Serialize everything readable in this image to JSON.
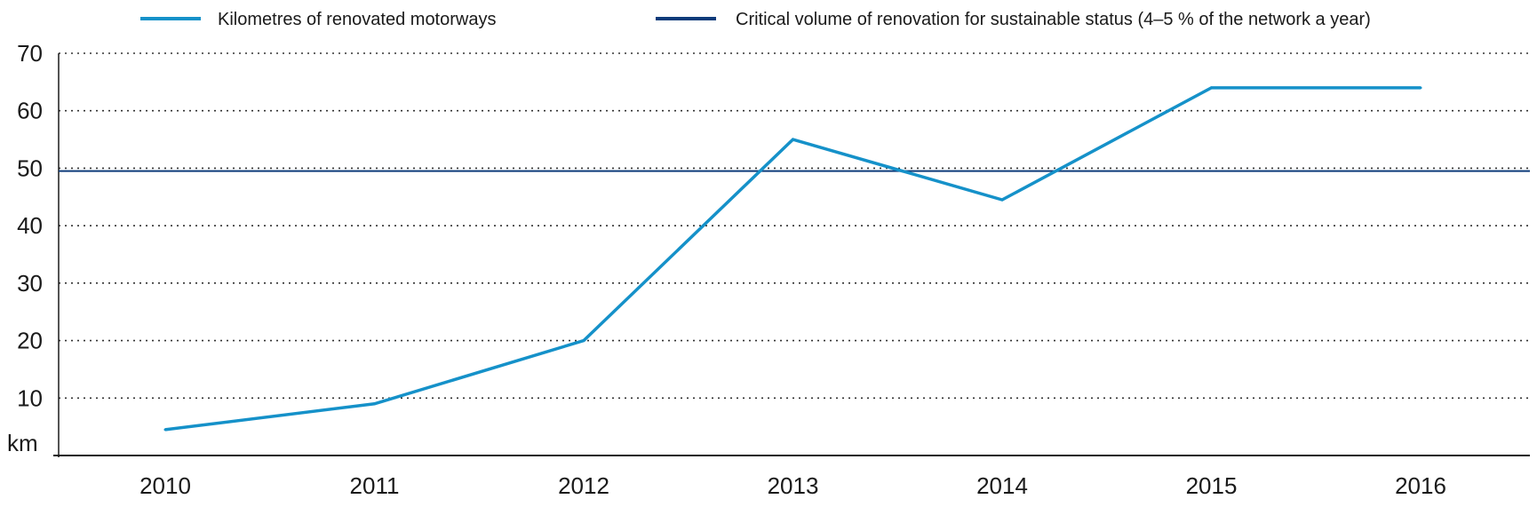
{
  "chart_data": {
    "type": "line",
    "title": "",
    "xlabel": "",
    "ylabel": "km",
    "ylim": [
      0,
      70
    ],
    "yticks": [
      "10",
      "20",
      "30",
      "40",
      "50",
      "60",
      "70"
    ],
    "grid": true,
    "legend_position": "top",
    "categories": [
      "2010",
      "2011",
      "2012",
      "2013",
      "2014",
      "2015",
      "2016"
    ],
    "series": [
      {
        "name": "Kilometres of renovated motorways",
        "color": "#1591c9",
        "values": [
          4.5,
          9,
          20,
          55,
          44.5,
          64,
          64
        ]
      }
    ],
    "reference_lines": [
      {
        "name": "Critical volume of renovation for sustainable status (4–5 % of the network a year)",
        "color": "#0d3b7a",
        "value": 49.5
      }
    ]
  }
}
